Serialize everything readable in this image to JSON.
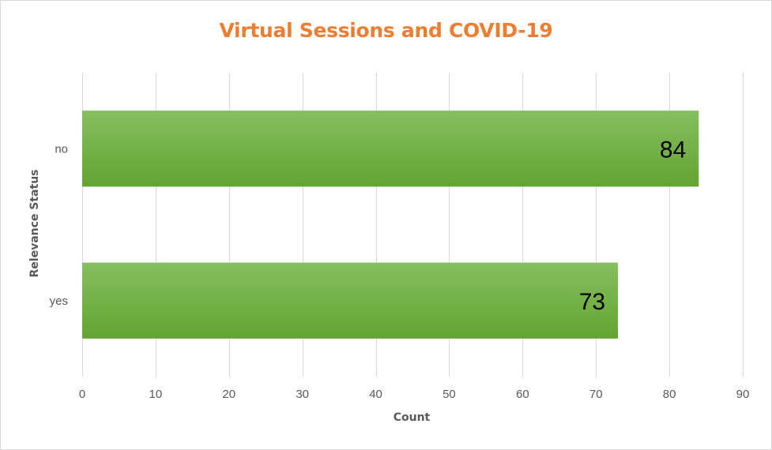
{
  "chart_data": {
    "type": "bar",
    "orientation": "horizontal",
    "title": "Virtual Sessions and COVID-19",
    "xlabel": "Count",
    "ylabel": "Relevance Status",
    "categories": [
      "no",
      "yes"
    ],
    "values": [
      84,
      73
    ],
    "data_labels": [
      "84",
      "73"
    ],
    "xlim": [
      0,
      90
    ],
    "x_ticks": [
      0,
      10,
      20,
      30,
      40,
      50,
      60,
      70,
      80,
      90
    ],
    "x_tick_labels": [
      "0",
      "10",
      "20",
      "30",
      "40",
      "50",
      "60",
      "70",
      "80",
      "90"
    ],
    "grid": true,
    "legend": "none",
    "colors": {
      "bar": "#70ad47",
      "title": "#ed7d31",
      "axis_text": "#595959",
      "gridline": "#d9d9d9"
    }
  }
}
